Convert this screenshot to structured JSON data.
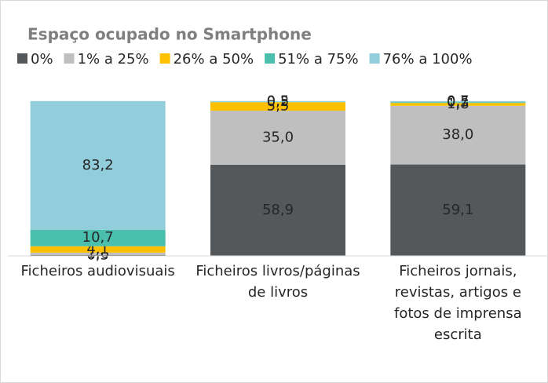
{
  "chart_data": {
    "type": "stacked_bar",
    "title": "Espaço ocupado no Smartphone",
    "categories": [
      "Ficheiros audiovisuais",
      "Ficheiros livros/páginas de livros",
      "Ficheiros jornais, revistas, artigos e fotos de imprensa escrita"
    ],
    "series": [
      {
        "name": "0%",
        "color": "#54585a",
        "values": [
          0.5,
          58.9,
          59.1
        ],
        "value_labels": [
          "0,5",
          "58,9",
          "59,1"
        ]
      },
      {
        "name": "1% a 25%",
        "color": "#bfbfbf",
        "values": [
          1.6,
          35.0,
          38.0
        ],
        "value_labels": [
          "1,6",
          "35,0",
          "38,0"
        ]
      },
      {
        "name": "26% a 50%",
        "color": "#ffc000",
        "values": [
          4.1,
          5.5,
          1.8
        ],
        "value_labels": [
          "4,1",
          "5,5",
          "1,8"
        ]
      },
      {
        "name": "51% a 75%",
        "color": "#4bbfad",
        "values": [
          10.7,
          0.2,
          0.5
        ],
        "value_labels": [
          "10,7",
          "0,2",
          "0,5"
        ]
      },
      {
        "name": "76% a 100%",
        "color": "#92cddc",
        "values": [
          83.2,
          0.5,
          0.7
        ],
        "value_labels": [
          "83,2",
          "0,5",
          "0,7"
        ]
      }
    ],
    "ylim": [
      0,
      100
    ],
    "legend": "top"
  }
}
